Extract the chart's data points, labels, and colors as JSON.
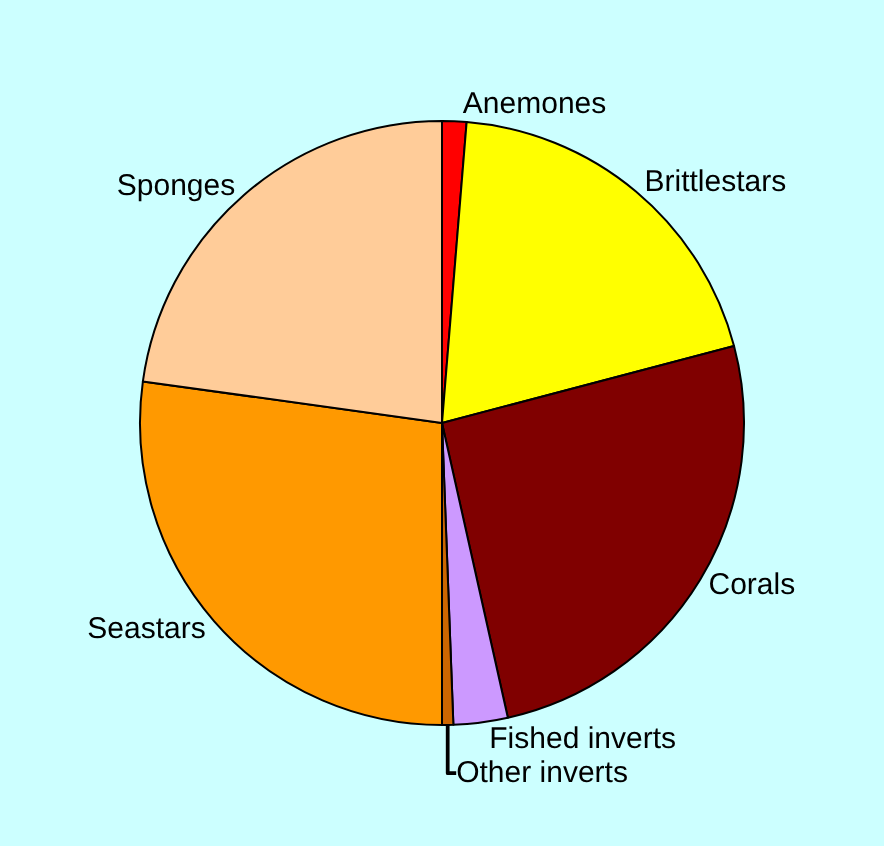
{
  "chart_data": {
    "type": "pie",
    "categories": [
      "Anemones",
      "Brittlestars",
      "Corals",
      "Fished inverts",
      "Other inverts",
      "Seastars",
      "Sponges"
    ],
    "values": [
      1.3,
      19.6,
      25.6,
      2.9,
      0.6,
      27.2,
      22.8
    ],
    "colors": [
      "#ff0000",
      "#ffff00",
      "#800000",
      "#cc99ff",
      "#cc6600",
      "#ff9900",
      "#ffcc99"
    ],
    "legend": false
  }
}
